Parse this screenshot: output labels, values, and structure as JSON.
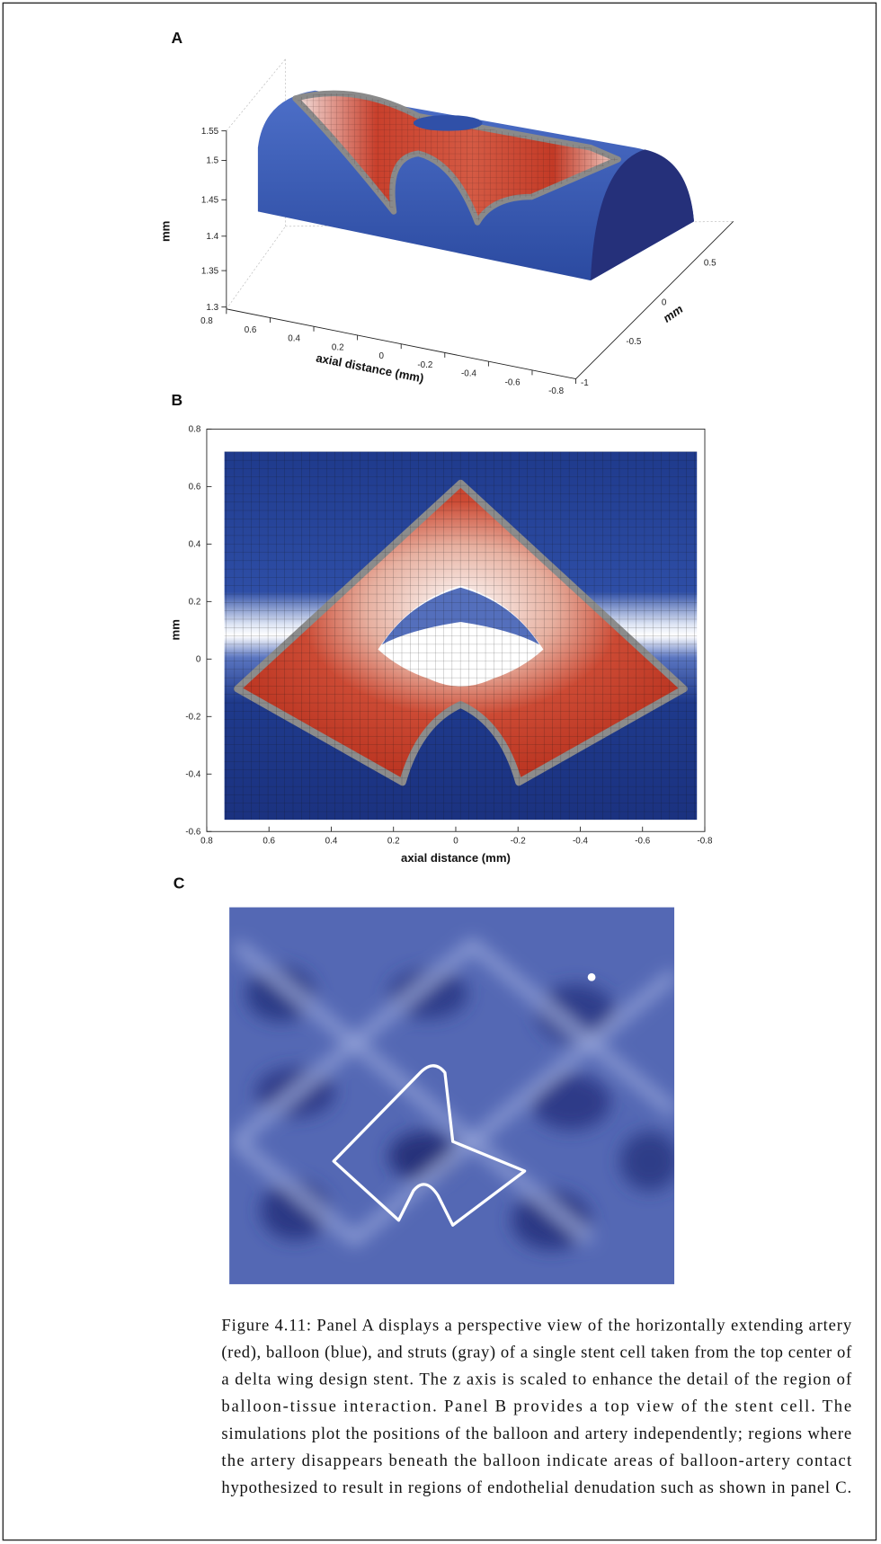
{
  "panels": [
    {
      "label": "A",
      "z_label": "mm",
      "z_ticks": [
        "1.55",
        "1.5",
        "1.45",
        "1.4",
        "1.35",
        "1.3"
      ],
      "x_label": "axial distance (mm)",
      "x_ticks": [
        "0.8",
        "0.6",
        "0.4",
        "0.2",
        "0",
        "-0.2",
        "-0.4",
        "-0.6",
        "-0.8"
      ],
      "y_label": "mm",
      "y_ticks": [
        "0.5",
        "0",
        "-0.5",
        "-1"
      ]
    },
    {
      "label": "B",
      "y_label": "mm",
      "y_ticks": [
        "0.8",
        "0.6",
        "0.4",
        "0.2",
        "0",
        "-0.2",
        "-0.4",
        "-0.6"
      ],
      "x_label": "axial distance (mm)",
      "x_ticks": [
        "0.8",
        "0.6",
        "0.4",
        "0.2",
        "0",
        "-0.2",
        "-0.4",
        "-0.6",
        "-0.8"
      ]
    },
    {
      "label": "C"
    }
  ],
  "caption": {
    "lines": [
      "Figure 4.11: Panel A displays a perspective view of the horizontally extending artery",
      "(red), balloon (blue), and struts (gray) of a single stent cell taken from the top center of",
      "a delta wing design stent.  The z axis is scaled to enhance the detail of the region of",
      "balloon-tissue interaction.  Panel B provides a top view of the stent cell.  The",
      "simulations plot the positions of the balloon and artery independently; regions where",
      "the artery disappears beneath the balloon indicate areas of balloon-artery contact",
      "hypothesized to result in regions of endothelial denudation such as shown in panel C."
    ]
  }
}
